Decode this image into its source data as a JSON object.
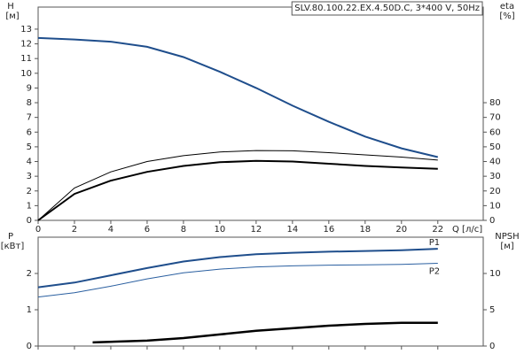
{
  "chart_data": [
    {
      "type": "line",
      "title": "SLV.80.100.22.EX.4.50D.C, 3*400 V, 50Hz",
      "ylabel": "H",
      "yunit": "[м]",
      "y2label": "eta",
      "y2unit": "[%]",
      "xlabel": "Q [л/с]",
      "x": [
        0,
        2,
        4,
        6,
        8,
        10,
        12,
        14,
        16,
        18,
        20,
        22
      ],
      "xlim": [
        0,
        24.5
      ],
      "xticks": [
        0,
        2,
        4,
        6,
        8,
        10,
        12,
        14,
        16,
        18,
        20,
        22
      ],
      "ylim": [
        0,
        14.5
      ],
      "yticks": [
        0,
        1,
        2,
        3,
        4,
        5,
        6,
        7,
        8,
        9,
        10,
        11,
        12,
        13
      ],
      "y2lim": [
        0,
        145
      ],
      "y2ticks": [
        0,
        10,
        20,
        30,
        40,
        50,
        60,
        70,
        80
      ],
      "series": [
        {
          "color": "#1f4e8c",
          "linewidth": 2,
          "values": [
            12.4,
            12.3,
            12.15,
            11.8,
            11.1,
            10.1,
            9.0,
            7.8,
            6.7,
            5.7,
            4.9,
            4.3
          ]
        },
        {
          "color": "#000000",
          "linewidth": 1,
          "axis": "y2",
          "values": [
            0,
            22,
            33,
            40,
            44,
            46.5,
            47.5,
            47.3,
            46,
            44.5,
            43,
            41
          ]
        },
        {
          "color": "#000000",
          "linewidth": 2,
          "axis": "y2",
          "values": [
            0,
            18,
            27,
            33,
            37,
            39.5,
            40.5,
            40,
            38.5,
            37,
            36,
            35
          ]
        }
      ]
    },
    {
      "type": "line",
      "ylabel": "P",
      "yunit": "[кВт]",
      "y2label": "NPSH",
      "y2unit": "[м]",
      "x": [
        0,
        2,
        4,
        6,
        8,
        10,
        12,
        14,
        16,
        18,
        20,
        22
      ],
      "xlim": [
        0,
        24.5
      ],
      "xticks": [
        0,
        2,
        4,
        6,
        8,
        10,
        12,
        14,
        16,
        18,
        20,
        22
      ],
      "ylim": [
        0,
        3
      ],
      "yticks": [
        0,
        1,
        2
      ],
      "y2lim": [
        0,
        15
      ],
      "y2ticks": [
        0,
        5,
        10
      ],
      "series": [
        {
          "name": "P1",
          "color": "#1f4e8c",
          "linewidth": 2,
          "values": [
            1.62,
            1.75,
            1.95,
            2.15,
            2.33,
            2.45,
            2.53,
            2.57,
            2.6,
            2.62,
            2.64,
            2.68
          ]
        },
        {
          "name": "P2",
          "color": "#2a5fa0",
          "linewidth": 1,
          "values": [
            1.35,
            1.47,
            1.65,
            1.85,
            2.02,
            2.12,
            2.18,
            2.21,
            2.23,
            2.24,
            2.25,
            2.28
          ]
        },
        {
          "color": "#000000",
          "linewidth": 2.5,
          "axis": "y2",
          "x": [
            3,
            6,
            8,
            10,
            12,
            14,
            16,
            18,
            20,
            22
          ],
          "values": [
            0.5,
            0.75,
            1.1,
            1.6,
            2.1,
            2.45,
            2.8,
            3.05,
            3.2,
            3.2
          ]
        }
      ]
    }
  ]
}
